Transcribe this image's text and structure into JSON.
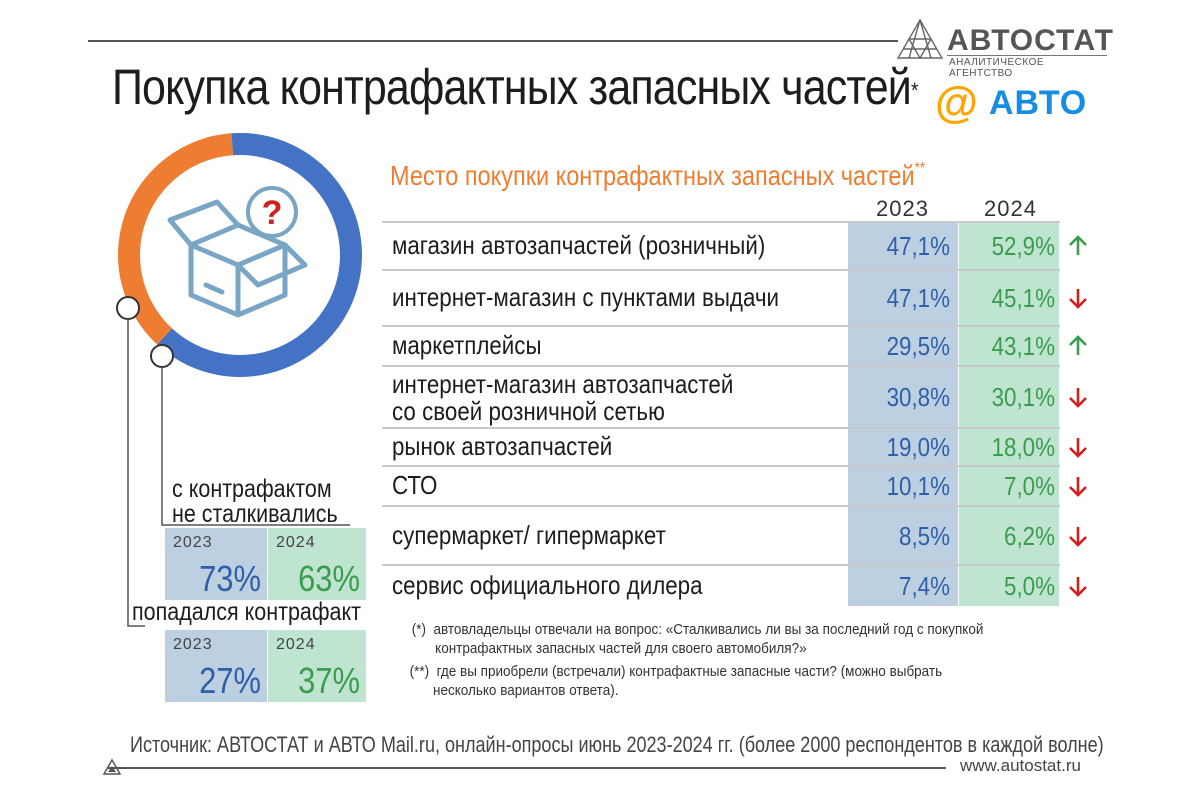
{
  "header": {
    "title": "Покупка контрафактных запасных частей",
    "title_mark": "*",
    "logo_autostat_name": "АВТОСТАТ",
    "logo_autostat_sub": "АНАЛИТИЧЕСКОЕ АГЕНТСТВО",
    "logo_avto_symbol": "@",
    "logo_avto_text": "АВТО"
  },
  "colors": {
    "orange": "#ee7d31",
    "blue": "#4472c4",
    "col_2023_bg": "#bcd0e2",
    "col_2024_bg": "#bfe4cf",
    "value_2023": "#2f5fa8",
    "value_2024": "#3a9c4f",
    "arrow_up": "#3a9c4f",
    "arrow_down": "#d0201e"
  },
  "donut": {
    "icon": "question-box-icon",
    "question_mark": "?"
  },
  "counterfeit_summary": {
    "never_label_line1": "с контрафактом",
    "never_label_line2": "не сталкивались",
    "encountered_label": "попадался контрафакт",
    "year_2023": "2023",
    "year_2024": "2024",
    "never_2023": "73%",
    "never_2024": "63%",
    "encountered_2023": "27%",
    "encountered_2024": "37%"
  },
  "table": {
    "subtitle": "Место покупки контрафактных запасных частей",
    "subtitle_mark": "**",
    "year_2023": "2023",
    "year_2024": "2024",
    "rows": [
      {
        "label": "магазин автозапчастей (розничный)",
        "label2": "",
        "v2023": "47,1%",
        "v2024": "52,9%",
        "trend": "up"
      },
      {
        "label": "интернет-магазин с пунктами выдачи",
        "label2": "",
        "v2023": "47,1%",
        "v2024": "45,1%",
        "trend": "down"
      },
      {
        "label": "маркетплейсы",
        "label2": "",
        "v2023": "29,5%",
        "v2024": "43,1%",
        "trend": "up"
      },
      {
        "label": "интернет-магазин автозапчастей",
        "label2": "со своей розничной сетью",
        "v2023": "30,8%",
        "v2024": "30,1%",
        "trend": "down"
      },
      {
        "label": "рынок автозапчастей",
        "label2": "",
        "v2023": "19,0%",
        "v2024": "18,0%",
        "trend": "down"
      },
      {
        "label": "СТО",
        "label2": "",
        "v2023": "10,1%",
        "v2024": "7,0%",
        "trend": "down"
      },
      {
        "label": "супермаркет/ гипермаркет",
        "label2": "",
        "v2023": "8,5%",
        "v2024": "6,2%",
        "trend": "down"
      },
      {
        "label": "сервис официального дилера",
        "label2": "",
        "v2023": "7,4%",
        "v2024": "5,0%",
        "trend": "down"
      }
    ]
  },
  "notes": {
    "n1_mark": "(*)",
    "n1_line1": "автовладельцы отвечали на вопрос: «Сталкивались ли вы за последний год с покупкой",
    "n1_line2": "контрафактных запасных частей для своего автомобиля?»",
    "n2_mark": "(**)",
    "n2_line1": "где вы приобрели (встречали) контрафактные запасные части? (можно выбрать",
    "n2_line2": "несколько вариантов ответа)."
  },
  "footer": {
    "source": "Источник: АВТОСТАТ и АВТО Mail.ru, онлайн-опросы июнь 2023-2024 гг. (более 2000 респондентов в каждой волне)",
    "website": "www.autostat.ru"
  },
  "chart_data": {
    "type": "table",
    "title": "Место покупки контрафактных запасных частей",
    "columns": [
      "2023",
      "2024"
    ],
    "categories": [
      "магазин автозапчастей (розничный)",
      "интернет-магазин с пунктами выдачи",
      "маркетплейсы",
      "интернет-магазин автозапчастей со своей розничной сетью",
      "рынок автозапчастей",
      "СТО",
      "супермаркет/ гипермаркет",
      "сервис официального дилера"
    ],
    "series": [
      {
        "name": "2023",
        "values": [
          47.1,
          47.1,
          29.5,
          30.8,
          19.0,
          10.1,
          8.5,
          7.4
        ]
      },
      {
        "name": "2024",
        "values": [
          52.9,
          45.1,
          43.1,
          30.1,
          18.0,
          7.0,
          6.2,
          5.0
        ]
      }
    ],
    "summary": {
      "type": "pie",
      "categories": [
        "с контрафактом не сталкивались",
        "попадался контрафакт"
      ],
      "series": [
        {
          "name": "2023",
          "values": [
            73,
            27
          ]
        },
        {
          "name": "2024",
          "values": [
            63,
            37
          ]
        }
      ]
    }
  }
}
